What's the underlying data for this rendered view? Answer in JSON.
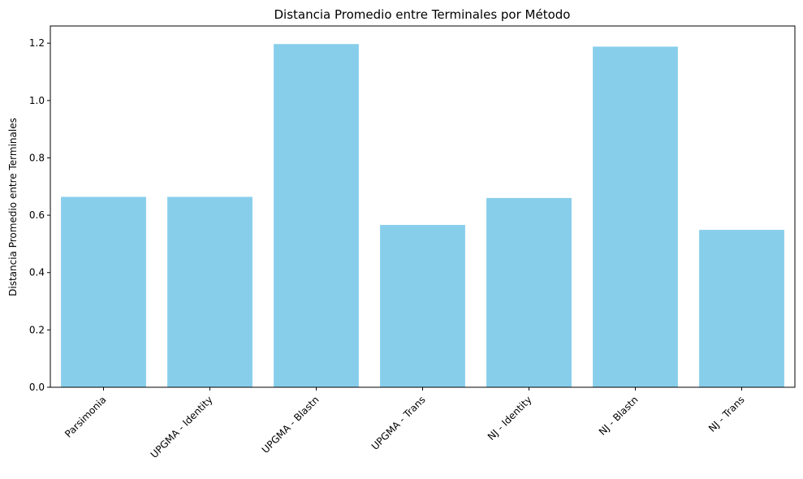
{
  "chart_data": {
    "type": "bar",
    "title": "Distancia Promedio entre Terminales por Método",
    "xlabel": "",
    "ylabel": "Distancia Promedio entre Terminales",
    "categories": [
      "Parsimonia",
      "UPGMA - Identity",
      "UPGMA - Blastn",
      "UPGMA - Trans",
      "NJ - Identity",
      "NJ - Blastn",
      "NJ - Trans"
    ],
    "values": [
      0.664,
      0.664,
      1.197,
      0.566,
      0.66,
      1.188,
      0.549
    ],
    "ylim": [
      0,
      1.26
    ],
    "yticks": [
      "0.0",
      "0.2",
      "0.4",
      "0.6",
      "0.8",
      "1.0",
      "1.2"
    ],
    "grid": false,
    "bar_color": "#87ceeb"
  }
}
